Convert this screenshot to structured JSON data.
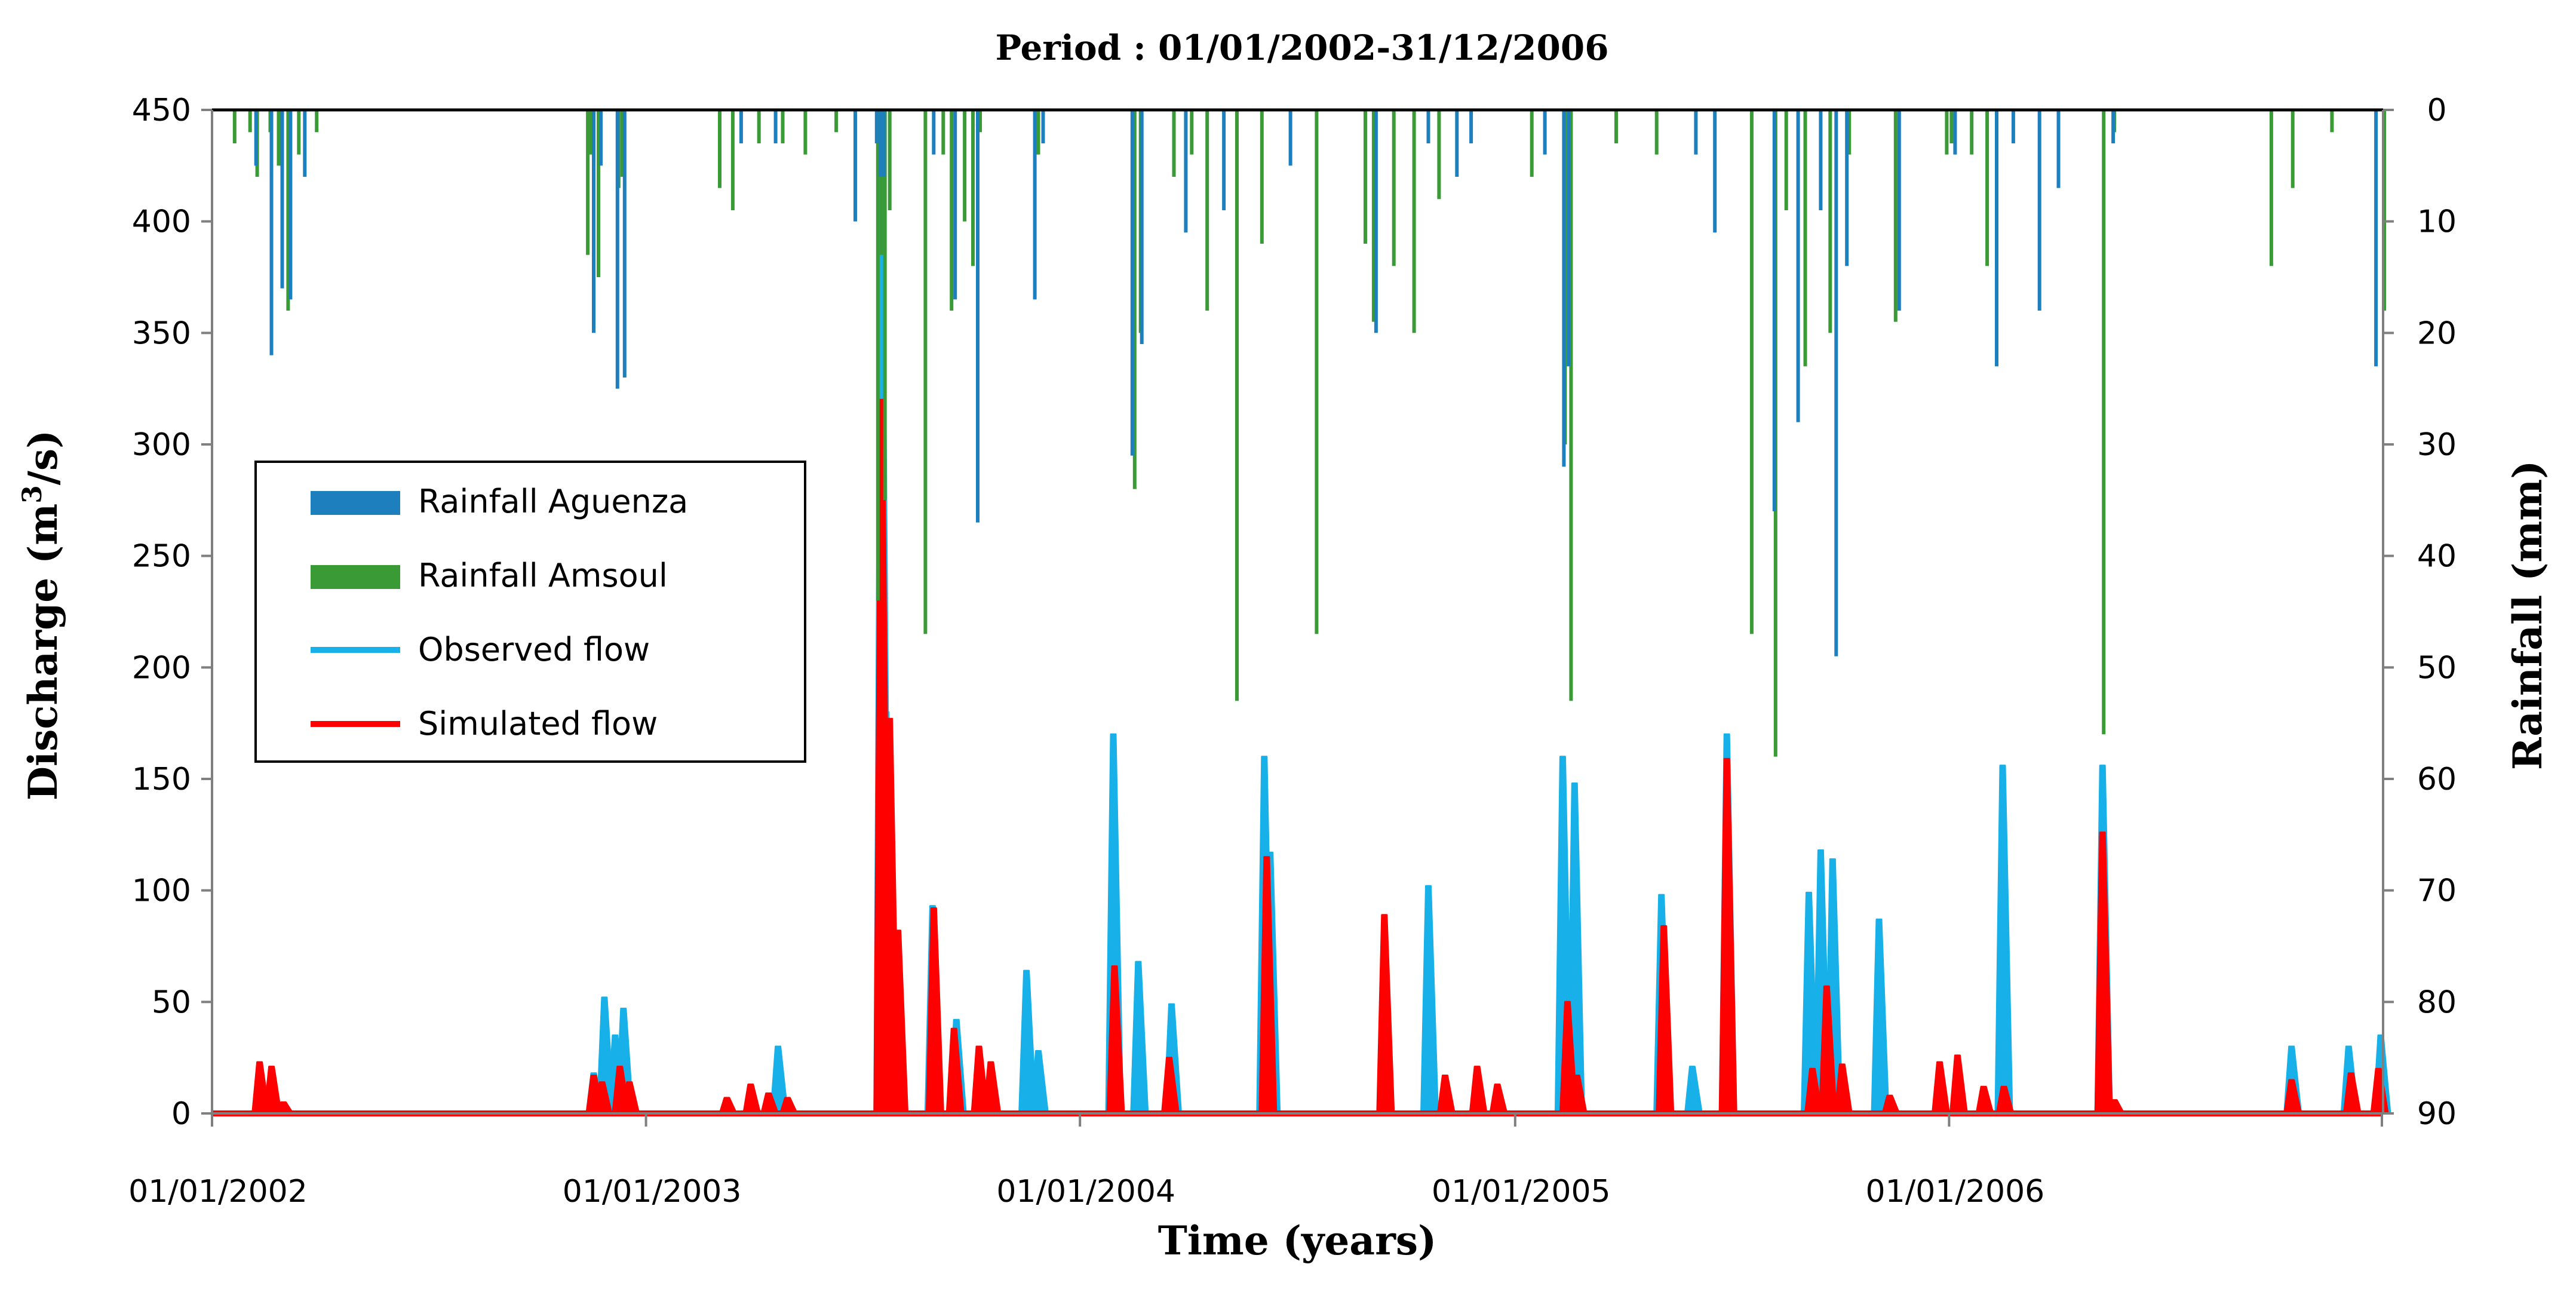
{
  "chart_data": {
    "type": "line",
    "title": "Period : 01/01/2002-31/12/2006",
    "xlabel": "Time (years)",
    "ylabel_left": "Discharge (m³/s)",
    "ylabel_left_main": "Discharge (m",
    "ylabel_left_sup": "3",
    "ylabel_left_end": "/s)",
    "ylabel_right": "Rainfall (mm)",
    "x_range": [
      "2002-01-01",
      "2006-12-31"
    ],
    "x_ticks": [
      "01/01/2002",
      "01/01/2003",
      "01/01/2004",
      "01/01/2005",
      "01/01/2006"
    ],
    "x_tick_dates": [
      "2002-01-01",
      "2003-01-01",
      "2004-01-01",
      "2005-01-01",
      "2006-01-01"
    ],
    "ylim_left": [
      0,
      450
    ],
    "yticks_left": [
      "0",
      "50",
      "100",
      "150",
      "200",
      "250",
      "300",
      "350",
      "400",
      "450"
    ],
    "ylim_right": [
      0,
      90
    ],
    "right_axis_inverted": true,
    "yticks_right": [
      "0",
      "10",
      "20",
      "30",
      "40",
      "50",
      "60",
      "70",
      "80",
      "90"
    ],
    "grid": false,
    "legend_position": "left",
    "colors": {
      "aguenza": "#1E7FBF",
      "amsoul": "#3A9A35",
      "observed": "#17B0E8",
      "simulated": "#FF0000"
    },
    "legend": [
      {
        "label": "Rainfall Aguenza",
        "kind": "bar",
        "color": "#1E7FBF"
      },
      {
        "label": "Rainfall Amsoul",
        "kind": "bar",
        "color": "#3A9A35"
      },
      {
        "label": "Observed flow",
        "kind": "line",
        "color": "#17B0E8"
      },
      {
        "label": "Simulated flow",
        "kind": "line",
        "color": "#FF0000"
      }
    ],
    "series": [
      {
        "name": "Rainfall Aguenza",
        "type": "bar",
        "axis": "right",
        "color": "#1E7FBF",
        "x": [
          "2002-02-07",
          "2002-02-20",
          "2002-03-01",
          "2002-03-08",
          "2002-03-20",
          "2002-11-18",
          "2002-11-24",
          "2002-12-08",
          "2002-12-14",
          "2003-03-22",
          "2003-04-20",
          "2003-06-26",
          "2003-07-14",
          "2003-07-17",
          "2003-07-20",
          "2003-08-31",
          "2003-09-18",
          "2003-10-07",
          "2003-11-24",
          "2003-12-01",
          "2004-02-14",
          "2004-02-22",
          "2004-03-30",
          "2004-05-01",
          "2004-06-26",
          "2004-09-06",
          "2004-10-20",
          "2004-11-13",
          "2004-11-25",
          "2005-01-26",
          "2005-02-11",
          "2005-02-15",
          "2005-06-02",
          "2005-06-18",
          "2005-08-07",
          "2005-08-27",
          "2005-09-15",
          "2005-09-28",
          "2005-10-07",
          "2005-11-20",
          "2006-01-06",
          "2006-02-10",
          "2006-02-24",
          "2006-03-18",
          "2006-04-03",
          "2006-05-19",
          "2006-12-26"
        ],
        "values": [
          5,
          22,
          16,
          17,
          6,
          20,
          5,
          25,
          24,
          3,
          3,
          10,
          3,
          6,
          6,
          4,
          17,
          37,
          17,
          3,
          31,
          21,
          11,
          9,
          5,
          20,
          3,
          6,
          3,
          4,
          32,
          23,
          4,
          11,
          36,
          28,
          9,
          49,
          14,
          18,
          4,
          23,
          3,
          18,
          7,
          3,
          23
        ]
      },
      {
        "name": "Rainfall Amsoul",
        "type": "bar",
        "axis": "right",
        "color": "#3A9A35",
        "x": [
          "2002-01-20",
          "2002-02-02",
          "2002-02-08",
          "2002-02-19",
          "2002-02-26",
          "2002-03-06",
          "2002-03-15",
          "2002-03-30",
          "2002-11-13",
          "2002-11-15",
          "2002-11-22",
          "2002-12-09",
          "2002-12-12",
          "2003-03-04",
          "2003-03-15",
          "2003-04-06",
          "2003-04-26",
          "2003-05-15",
          "2003-06-10",
          "2003-07-15",
          "2003-07-18",
          "2003-07-21",
          "2003-07-25",
          "2003-08-24",
          "2003-09-08",
          "2003-09-15",
          "2003-09-26",
          "2003-10-03",
          "2003-10-09",
          "2003-11-27",
          "2004-02-16",
          "2004-02-21",
          "2004-03-20",
          "2004-04-04",
          "2004-04-17",
          "2004-05-12",
          "2004-06-02",
          "2004-07-18",
          "2004-08-28",
          "2004-09-04",
          "2004-09-21",
          "2004-10-08",
          "2004-10-29",
          "2005-01-15",
          "2005-02-12",
          "2005-02-17",
          "2005-03-27",
          "2005-04-30",
          "2005-07-19",
          "2005-08-08",
          "2005-08-17",
          "2005-09-02",
          "2005-09-23",
          "2005-10-09",
          "2005-11-17",
          "2005-12-30",
          "2006-01-03",
          "2006-01-20",
          "2006-02-02",
          "2006-05-11",
          "2006-05-20",
          "2006-09-29",
          "2006-10-17",
          "2006-11-19",
          "2007-01-02"
        ],
        "values": [
          3,
          2,
          6,
          2,
          5,
          18,
          4,
          2,
          13,
          4,
          15,
          7,
          6,
          7,
          9,
          3,
          3,
          4,
          2,
          44,
          13,
          35,
          9,
          47,
          4,
          18,
          10,
          14,
          2,
          4,
          34,
          20,
          6,
          4,
          18,
          53,
          12,
          47,
          12,
          19,
          14,
          20,
          8,
          6,
          30,
          53,
          3,
          4,
          47,
          58,
          9,
          23,
          20,
          4,
          19,
          4,
          3,
          4,
          14,
          56,
          2,
          14,
          7,
          2,
          18
        ]
      },
      {
        "name": "Observed flow",
        "type": "line",
        "axis": "left",
        "color": "#17B0E8",
        "x": [
          "2002-11-16",
          "2002-11-25",
          "2002-12-04",
          "2002-12-11",
          "2003-04-20",
          "2003-07-16",
          "2003-07-20",
          "2003-08-28",
          "2003-09-17",
          "2003-10-06",
          "2003-11-15",
          "2003-11-25",
          "2004-01-27",
          "2004-02-17",
          "2004-03-16",
          "2004-06-02",
          "2004-06-07",
          "2004-10-18",
          "2005-02-08",
          "2005-02-18",
          "2005-05-02",
          "2005-05-28",
          "2005-06-26",
          "2005-09-03",
          "2005-09-13",
          "2005-09-23",
          "2005-11-01",
          "2006-02-13",
          "2006-05-08",
          "2006-10-14",
          "2006-12-01",
          "2006-12-28"
        ],
        "values": [
          18,
          52,
          35,
          47,
          30,
          420,
          180,
          93,
          42,
          22,
          64,
          28,
          170,
          68,
          49,
          160,
          117,
          102,
          160,
          148,
          98,
          21,
          170,
          99,
          118,
          114,
          87,
          156,
          156,
          30,
          30,
          35
        ]
      },
      {
        "name": "Simulated flow",
        "type": "line",
        "axis": "left",
        "color": "#FF0000",
        "x": [
          "2002-02-08",
          "2002-02-18",
          "2002-02-28",
          "2002-11-16",
          "2002-11-23",
          "2002-12-08",
          "2002-12-16",
          "2003-03-08",
          "2003-03-28",
          "2003-04-12",
          "2003-04-28",
          "2003-07-16",
          "2003-07-23",
          "2003-07-30",
          "2003-08-29",
          "2003-09-15",
          "2003-10-06",
          "2003-10-16",
          "2004-01-28",
          "2004-03-14",
          "2004-06-04",
          "2004-09-11",
          "2004-11-01",
          "2004-11-28",
          "2004-12-15",
          "2005-02-12",
          "2005-02-20",
          "2005-05-04",
          "2005-06-26",
          "2005-09-06",
          "2005-09-18",
          "2005-10-01",
          "2005-11-10",
          "2005-12-22",
          "2006-01-06",
          "2006-01-28",
          "2006-02-14",
          "2006-05-08",
          "2006-05-18",
          "2006-10-14",
          "2006-12-03",
          "2006-12-26"
        ],
        "values": [
          23,
          21,
          5,
          17,
          14,
          21,
          14,
          7,
          13,
          9,
          7,
          320,
          177,
          82,
          92,
          38,
          30,
          23,
          66,
          25,
          115,
          89,
          17,
          21,
          13,
          50,
          17,
          84,
          159,
          20,
          57,
          22,
          8,
          23,
          26,
          12,
          12,
          126,
          6,
          15,
          18,
          20
        ]
      }
    ]
  }
}
